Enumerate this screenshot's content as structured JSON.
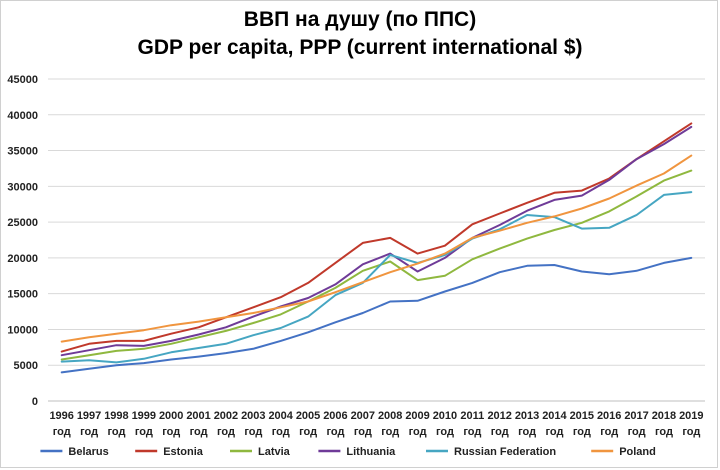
{
  "chart_data": {
    "type": "line",
    "title": "ВВП на душу (по ППС)",
    "subtitle": "GDP per capita, PPP (current international $)",
    "xlabel": "",
    "ylabel": "",
    "ylim": [
      0,
      45000
    ],
    "yticks": [
      0,
      5000,
      10000,
      15000,
      20000,
      25000,
      30000,
      35000,
      40000,
      45000
    ],
    "x": [
      1996,
      1997,
      1998,
      1999,
      2000,
      2001,
      2002,
      2003,
      2004,
      2005,
      2006,
      2007,
      2008,
      2009,
      2010,
      2011,
      2012,
      2013,
      2014,
      2015,
      2016,
      2017,
      2018,
      2019
    ],
    "x_suffix": "год",
    "grid": "horizontal",
    "legend_position": "bottom",
    "series": [
      {
        "name": "Belarus",
        "color": "#4472c4",
        "values": [
          4000,
          4500,
          5000,
          5300,
          5800,
          6200,
          6700,
          7300,
          8400,
          9600,
          11000,
          12300,
          13900,
          14000,
          15300,
          16500,
          18000,
          18900,
          19000,
          18100,
          17700,
          18200,
          19300,
          20000
        ]
      },
      {
        "name": "Estonia",
        "color": "#c0392b",
        "values": [
          6900,
          8000,
          8400,
          8400,
          9400,
          10300,
          11700,
          13100,
          14500,
          16500,
          19300,
          22100,
          22800,
          20600,
          21700,
          24700,
          26200,
          27700,
          29100,
          29400,
          31100,
          33800,
          36300,
          38800
        ]
      },
      {
        "name": "Latvia",
        "color": "#8fb83f",
        "values": [
          5800,
          6400,
          7000,
          7300,
          8000,
          8900,
          9800,
          10900,
          12100,
          13900,
          15800,
          18200,
          19500,
          16900,
          17500,
          19800,
          21300,
          22700,
          23900,
          24900,
          26500,
          28600,
          30800,
          32200
        ]
      },
      {
        "name": "Lithuania",
        "color": "#6f3b98",
        "values": [
          6400,
          7100,
          7800,
          7700,
          8400,
          9300,
          10300,
          11800,
          13200,
          14400,
          16300,
          19100,
          20600,
          18100,
          20000,
          22800,
          24600,
          26600,
          28100,
          28700,
          30900,
          33800,
          35900,
          38300
        ]
      },
      {
        "name": "Russian Federation",
        "color": "#46a6c2",
        "values": [
          5500,
          5700,
          5400,
          5900,
          6800,
          7400,
          8000,
          9200,
          10200,
          11800,
          14800,
          16500,
          20400,
          19300,
          20400,
          22700,
          24000,
          26000,
          25700,
          24100,
          24200,
          26000,
          28800,
          29200
        ]
      },
      {
        "name": "Poland",
        "color": "#f0953f",
        "values": [
          8300,
          8900,
          9400,
          9900,
          10600,
          11100,
          11700,
          12300,
          13100,
          13900,
          15200,
          16600,
          18000,
          19200,
          20600,
          22800,
          23800,
          24900,
          25800,
          26900,
          28300,
          30100,
          31800,
          34300
        ]
      }
    ]
  }
}
